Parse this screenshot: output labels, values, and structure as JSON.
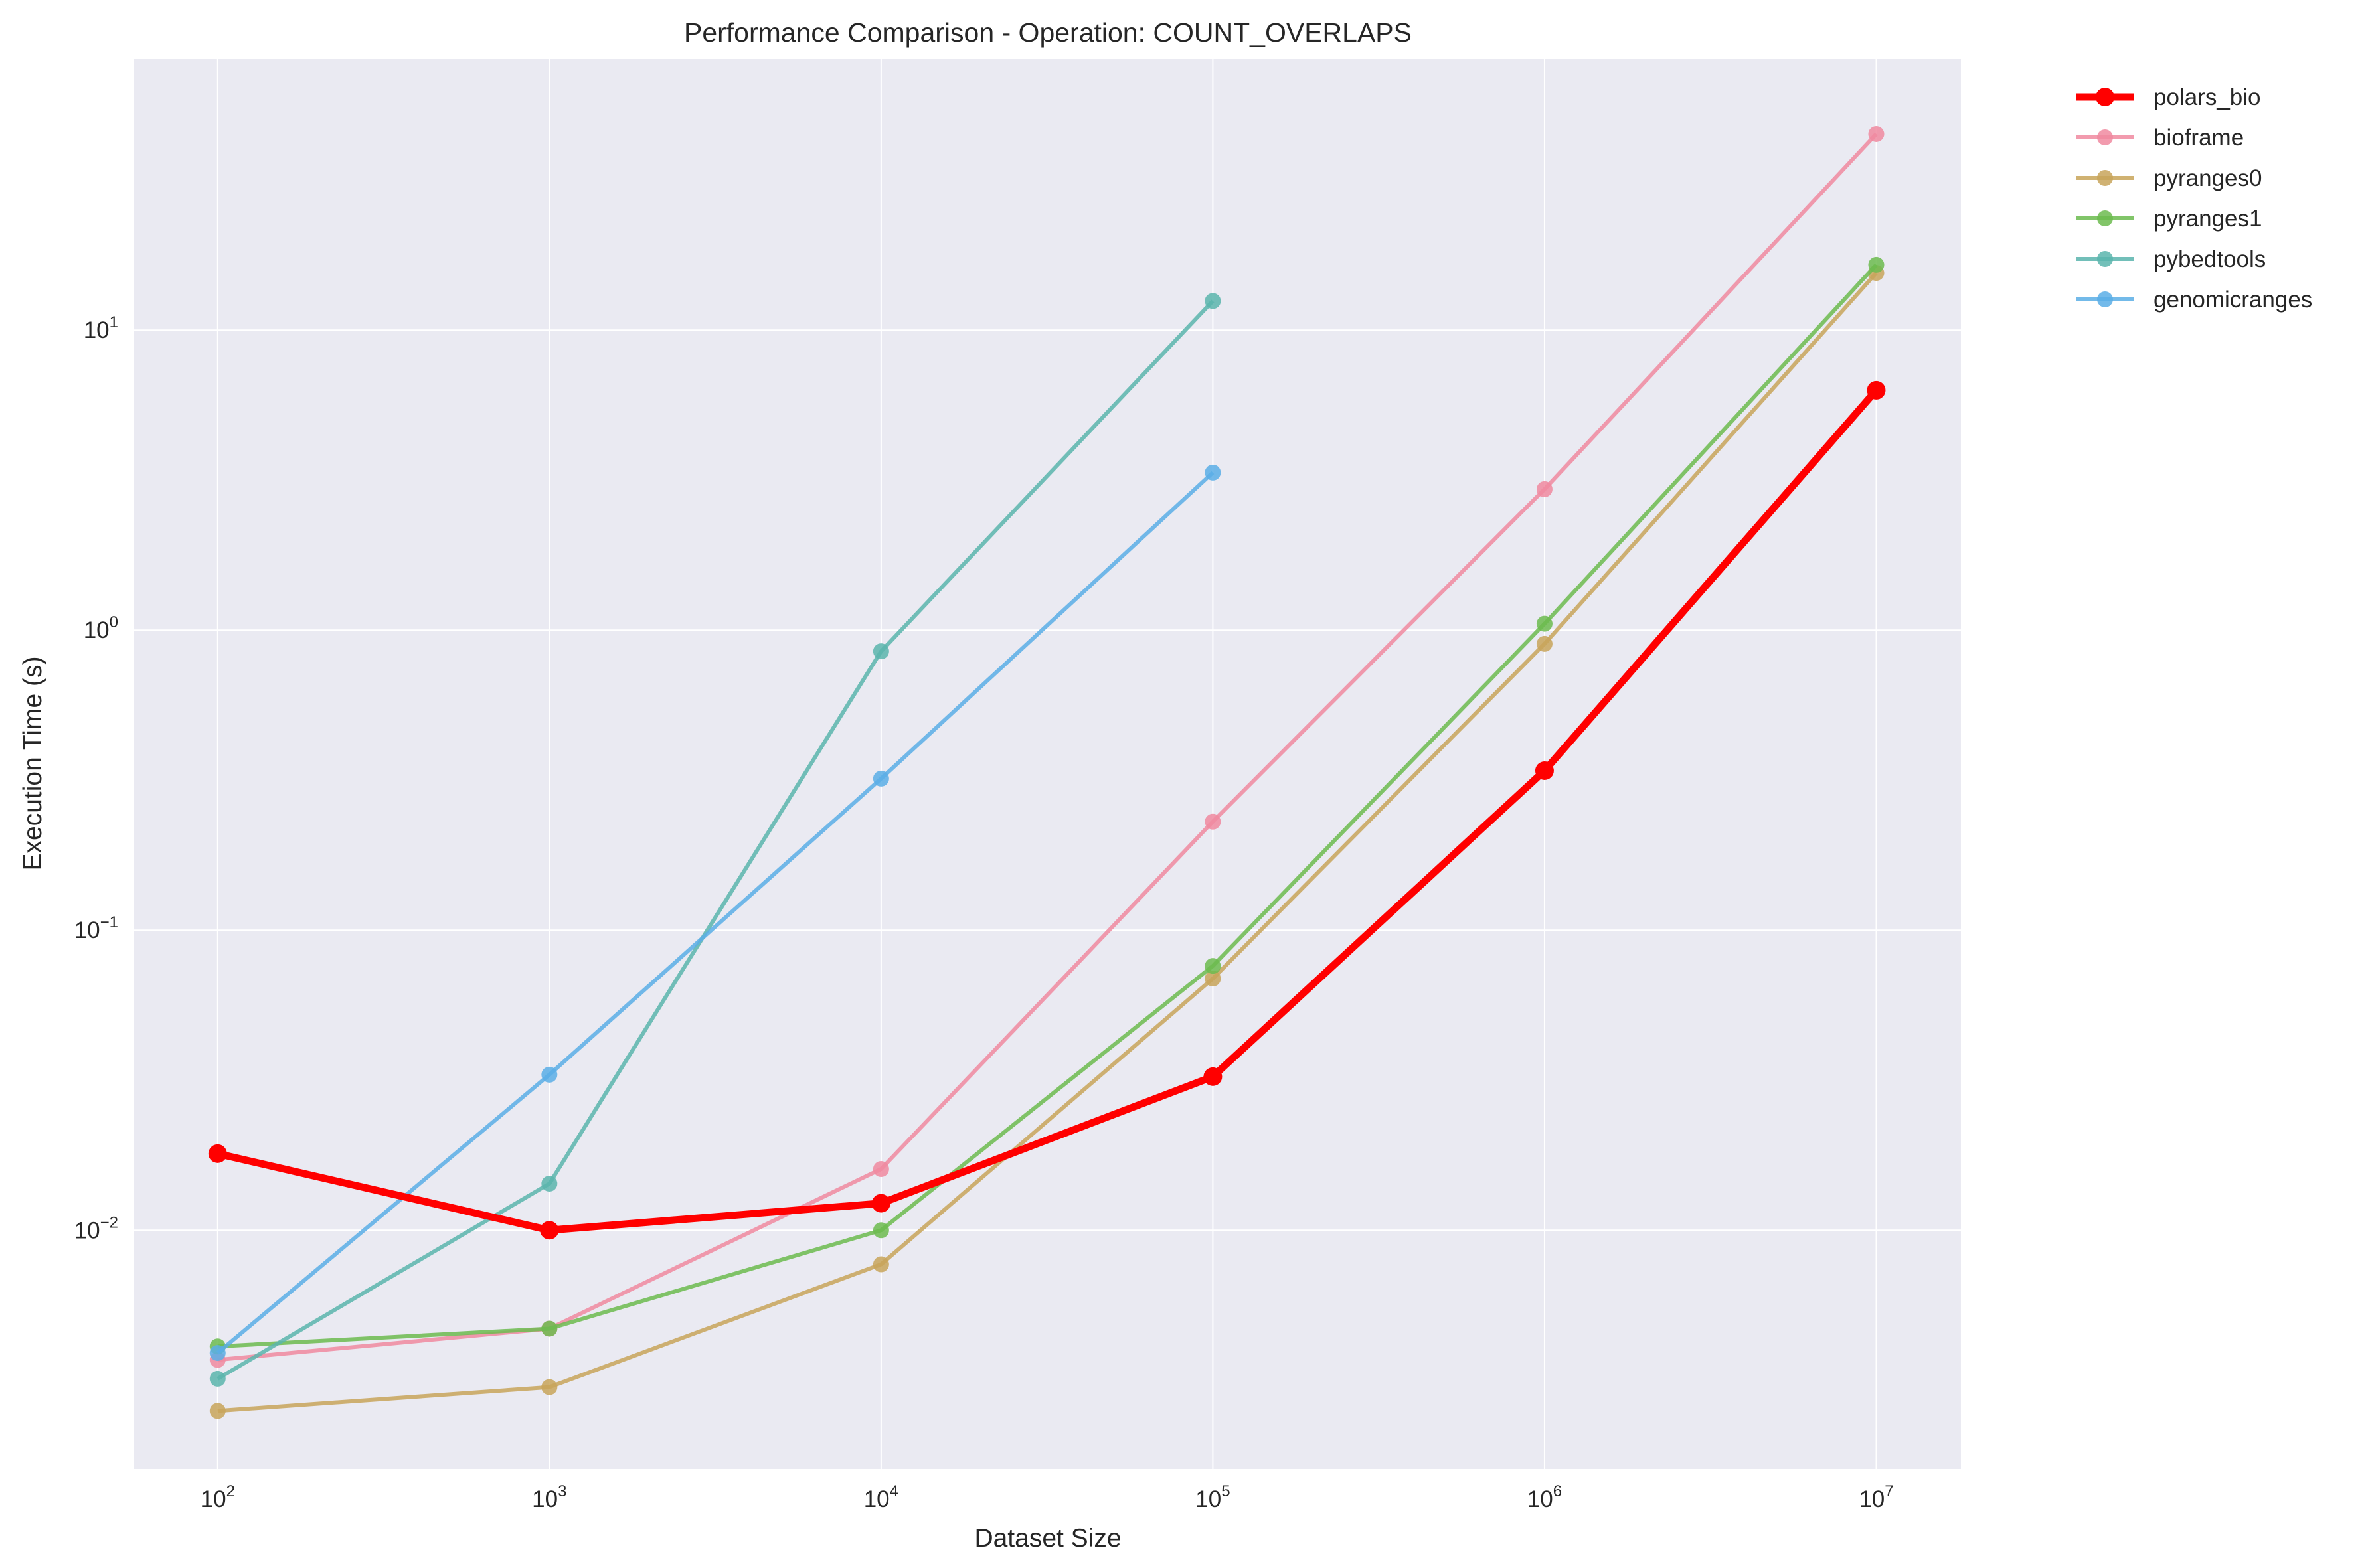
{
  "chart_data": {
    "type": "line",
    "title": "Performance Comparison - Operation: COUNT_OVERLAPS",
    "xlabel": "Dataset Size",
    "ylabel": "Execution Time (s)",
    "x_scale": "log",
    "y_scale": "log",
    "xlim": [
      56,
      18000000
    ],
    "ylim": [
      0.0016,
      80
    ],
    "x_ticks": [
      {
        "value": 100,
        "base": "10",
        "exp": "2"
      },
      {
        "value": 1000,
        "base": "10",
        "exp": "3"
      },
      {
        "value": 10000,
        "base": "10",
        "exp": "4"
      },
      {
        "value": 100000,
        "base": "10",
        "exp": "5"
      },
      {
        "value": 1000000,
        "base": "10",
        "exp": "6"
      },
      {
        "value": 10000000,
        "base": "10",
        "exp": "7"
      }
    ],
    "y_ticks": [
      {
        "value": 0.01,
        "base": "10",
        "exp": "−2"
      },
      {
        "value": 0.1,
        "base": "10",
        "exp": "−1"
      },
      {
        "value": 1,
        "base": "10",
        "exp": "0"
      },
      {
        "value": 10,
        "base": "10",
        "exp": "1"
      }
    ],
    "grid": true,
    "legend_position": "outside-top-right",
    "background": "#eaeaf2",
    "series": [
      {
        "name": "polars_bio",
        "color": "#ff0000",
        "emphasis": true,
        "x": [
          100,
          1000,
          10000,
          100000,
          1000000,
          10000000
        ],
        "values": [
          0.018,
          0.01,
          0.0123,
          0.0325,
          0.34,
          6.3
        ]
      },
      {
        "name": "bioframe",
        "color": "#f08aa0",
        "x": [
          100,
          1000,
          10000,
          100000,
          1000000,
          10000000
        ],
        "values": [
          0.0037,
          0.0047,
          0.016,
          0.23,
          2.95,
          45
        ]
      },
      {
        "name": "pyranges0",
        "color": "#c8a55a",
        "x": [
          100,
          1000,
          10000,
          100000,
          1000000,
          10000000
        ],
        "values": [
          0.0025,
          0.003,
          0.0077,
          0.069,
          0.9,
          15.5
        ]
      },
      {
        "name": "pyranges1",
        "color": "#6cbb4f",
        "x": [
          100,
          1000,
          10000,
          100000,
          1000000,
          10000000
        ],
        "values": [
          0.0041,
          0.0047,
          0.01,
          0.076,
          1.05,
          16.5
        ]
      },
      {
        "name": "pybedtools",
        "color": "#5ab5ad",
        "x": [
          100,
          1000,
          10000,
          100000
        ],
        "values": [
          0.0032,
          0.0143,
          0.85,
          12.5
        ]
      },
      {
        "name": "genomicranges",
        "color": "#5baee6",
        "x": [
          100,
          1000,
          10000,
          100000
        ],
        "values": [
          0.0039,
          0.033,
          0.32,
          3.35
        ]
      }
    ]
  }
}
